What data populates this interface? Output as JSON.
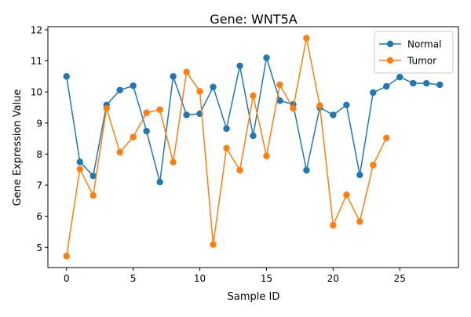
{
  "chart_data": {
    "type": "line",
    "title": "Gene: WNT5A",
    "xlabel": "Sample ID",
    "ylabel": "Gene Expression Value",
    "xlim": [
      -1.4,
      29.4
    ],
    "ylim": [
      4.35,
      12.1
    ],
    "xticks": [
      0,
      5,
      10,
      15,
      20,
      25
    ],
    "yticks": [
      5,
      6,
      7,
      8,
      9,
      10,
      11,
      12
    ],
    "grid": false,
    "legend_position": "top-right",
    "series": [
      {
        "name": "Normal",
        "color": "#1f77b4",
        "x": [
          0,
          1,
          2,
          3,
          4,
          5,
          6,
          7,
          8,
          9,
          10,
          11,
          12,
          13,
          14,
          15,
          16,
          17,
          18,
          19,
          20,
          21,
          22,
          23,
          24,
          25,
          26,
          27,
          28
        ],
        "values": [
          10.5,
          7.75,
          7.3,
          9.58,
          10.06,
          10.2,
          8.74,
          7.1,
          10.5,
          9.26,
          9.3,
          10.16,
          8.82,
          10.84,
          8.59,
          11.1,
          9.72,
          9.6,
          7.48,
          9.5,
          9.26,
          9.58,
          7.33,
          9.98,
          10.18,
          10.48,
          10.28,
          10.28,
          10.23
        ]
      },
      {
        "name": "Tumor",
        "color": "#ff7f0e",
        "x": [
          0,
          1,
          2,
          3,
          4,
          5,
          6,
          7,
          8,
          9,
          10,
          11,
          12,
          13,
          14,
          15,
          16,
          17,
          18,
          19,
          20,
          21,
          22,
          23,
          24
        ],
        "values": [
          4.72,
          7.52,
          6.67,
          9.47,
          8.06,
          8.55,
          9.33,
          9.43,
          7.74,
          10.64,
          10.02,
          5.09,
          8.19,
          7.48,
          9.88,
          7.94,
          10.23,
          9.47,
          11.73,
          9.56,
          5.71,
          6.69,
          5.83,
          7.65,
          8.52
        ]
      }
    ]
  }
}
